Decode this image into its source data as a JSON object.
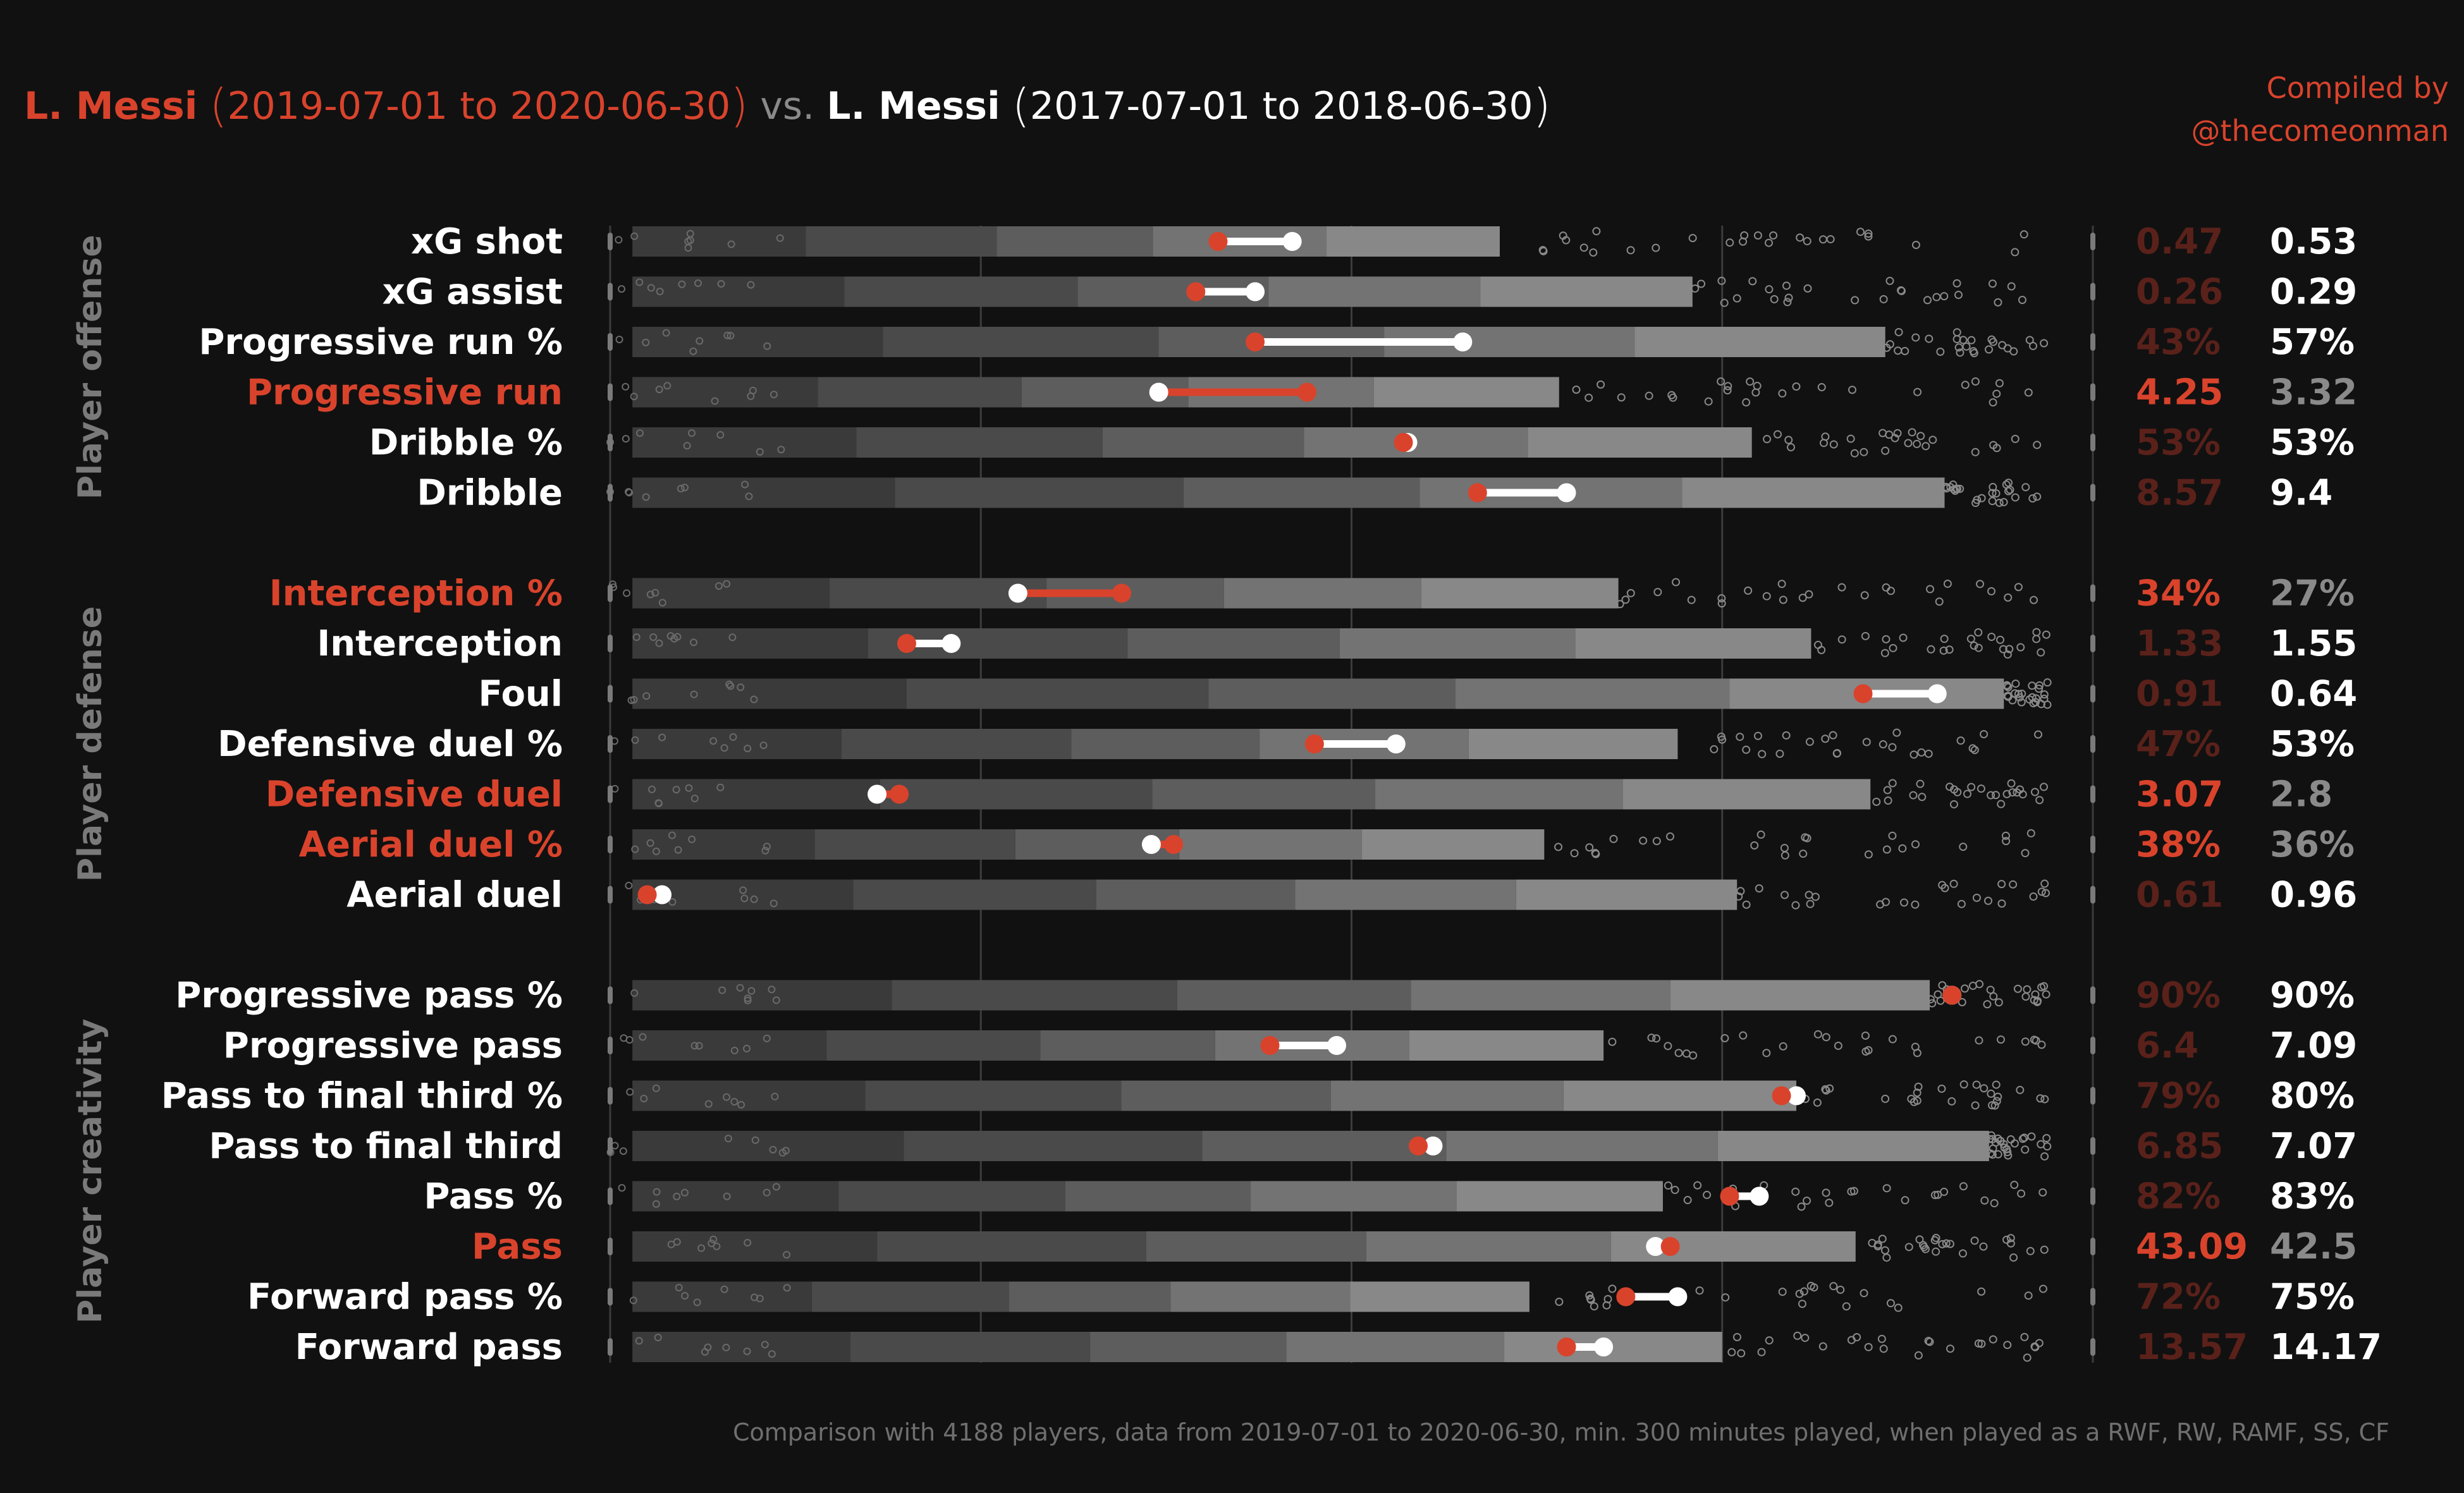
{
  "header": {
    "player_a_name": "L. Messi",
    "player_a_period": "2019-07-01  to  2020-06-30",
    "vs": "vs.",
    "player_b_name": "L. Messi",
    "player_b_period": "2017-07-01  to  2018-06-30"
  },
  "credit": {
    "line1": "Compiled by",
    "line2": "@thecomeonman"
  },
  "footer": "Comparison with 4188 players, data from 2019-07-01 to 2020-06-30, min. 300 minutes played, when played as a RWF, RW, RAMF, SS, CF",
  "colors": {
    "background": "#111111",
    "current": "#d9432c",
    "current_dim": "#5a211a",
    "previous": "#ffffff",
    "previous_dim": "#8a8a8a",
    "group_label": "#7a7a7a"
  },
  "chart_data": {
    "type": "scatter",
    "description_of_marks": "Per-metric percentile distributions of comparison players, with current (red) vs previous (white) season markers",
    "groups": [
      {
        "name": "Player offense",
        "metrics": [
          {
            "label": "xG shot",
            "current": "0.47",
            "previous": "0.53",
            "pct_current": 41.0,
            "pct_previous": 46.0,
            "highlight": "previous"
          },
          {
            "label": "xG assist",
            "current": "0.26",
            "previous": "0.29",
            "pct_current": 39.5,
            "pct_previous": 43.5,
            "highlight": "previous"
          },
          {
            "label": "Progressive run %",
            "current": "43%",
            "previous": "57%",
            "pct_current": 43.5,
            "pct_previous": 57.5,
            "highlight": "previous"
          },
          {
            "label": "Progressive run",
            "current": "4.25",
            "previous": "3.32",
            "pct_current": 47.0,
            "pct_previous": 37.0,
            "highlight": "current"
          },
          {
            "label": "Dribble %",
            "current": "53%",
            "previous": "53%",
            "pct_current": 53.5,
            "pct_previous": 53.8,
            "highlight": "previous"
          },
          {
            "label": "Dribble",
            "current": "8.57",
            "previous": "9.4",
            "pct_current": 58.5,
            "pct_previous": 64.5,
            "highlight": "previous"
          }
        ]
      },
      {
        "name": "Player defense",
        "metrics": [
          {
            "label": "Interception %",
            "current": "34%",
            "previous": "27%",
            "pct_current": 34.5,
            "pct_previous": 27.5,
            "highlight": "current"
          },
          {
            "label": "Interception",
            "current": "1.33",
            "previous": "1.55",
            "pct_current": 20.0,
            "pct_previous": 23.0,
            "highlight": "previous"
          },
          {
            "label": "Foul",
            "current": "0.91",
            "previous": "0.64",
            "pct_current": 84.5,
            "pct_previous": 89.5,
            "highlight": "previous"
          },
          {
            "label": "Defensive duel %",
            "current": "47%",
            "previous": "53%",
            "pct_current": 47.5,
            "pct_previous": 53.0,
            "highlight": "previous"
          },
          {
            "label": "Defensive duel",
            "current": "3.07",
            "previous": "2.8",
            "pct_current": 19.5,
            "pct_previous": 18.0,
            "highlight": "current"
          },
          {
            "label": "Aerial duel %",
            "current": "38%",
            "previous": "36%",
            "pct_current": 38.0,
            "pct_previous": 36.5,
            "highlight": "current"
          },
          {
            "label": "Aerial duel",
            "current": "0.61",
            "previous": "0.96",
            "pct_current": 2.5,
            "pct_previous": 3.5,
            "highlight": "previous"
          }
        ]
      },
      {
        "name": "Player creativity",
        "metrics": [
          {
            "label": "Progressive pass %",
            "current": "90%",
            "previous": "90%",
            "pct_current": 90.5,
            "pct_previous": 90.5,
            "highlight": "previous"
          },
          {
            "label": "Progressive pass",
            "current": "6.4",
            "previous": "7.09",
            "pct_current": 44.5,
            "pct_previous": 49.0,
            "highlight": "previous"
          },
          {
            "label": "Pass to final third %",
            "current": "79%",
            "previous": "80%",
            "pct_current": 79.0,
            "pct_previous": 80.0,
            "highlight": "previous"
          },
          {
            "label": "Pass to final third",
            "current": "6.85",
            "previous": "7.07",
            "pct_current": 54.5,
            "pct_previous": 55.5,
            "highlight": "previous"
          },
          {
            "label": "Pass %",
            "current": "82%",
            "previous": "83%",
            "pct_current": 75.5,
            "pct_previous": 77.5,
            "highlight": "previous"
          },
          {
            "label": "Pass",
            "current": "43.09",
            "previous": "42.5",
            "pct_current": 71.5,
            "pct_previous": 70.5,
            "highlight": "current"
          },
          {
            "label": "Forward pass %",
            "current": "72%",
            "previous": "75%",
            "pct_current": 68.5,
            "pct_previous": 72.0,
            "highlight": "previous"
          },
          {
            "label": "Forward pass",
            "current": "13.57",
            "previous": "14.17",
            "pct_current": 64.5,
            "pct_previous": 67.0,
            "highlight": "previous"
          }
        ]
      }
    ],
    "grid": true
  }
}
